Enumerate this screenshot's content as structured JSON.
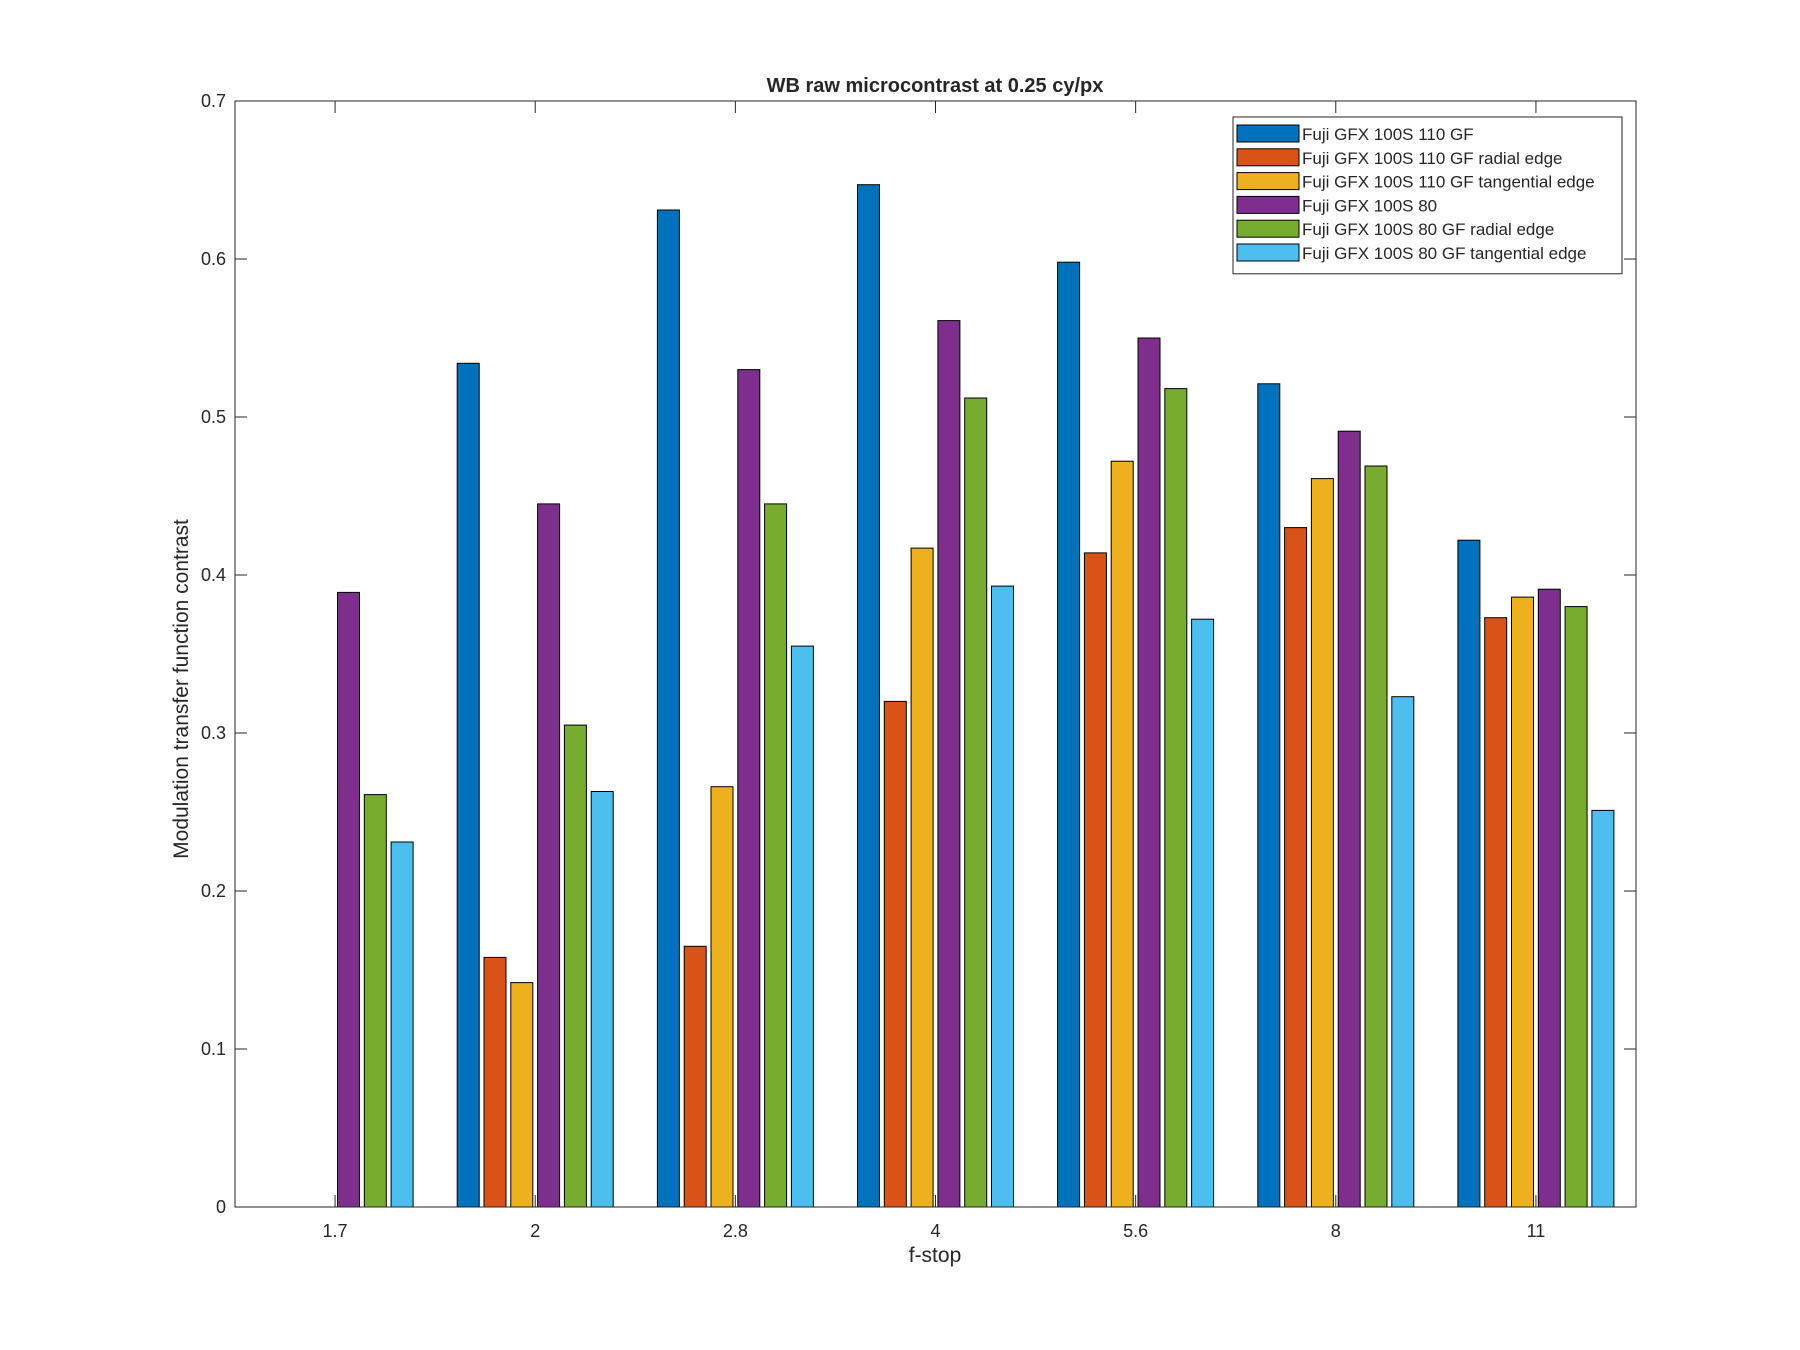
{
  "chart_data": {
    "type": "bar",
    "title": "WB raw  microcontrast at 0.25 cy/px",
    "xlabel": "f-stop",
    "ylabel": "Modulation transfer function contrast",
    "categories": [
      "1.7",
      "2",
      "2.8",
      "4",
      "5.6",
      "8",
      "11"
    ],
    "ylim": [
      0,
      0.7
    ],
    "yticks": [
      "0",
      "0.1",
      "0.2",
      "0.3",
      "0.4",
      "0.5",
      "0.6",
      "0.7"
    ],
    "grid": false,
    "legend_position": "top-right",
    "series": [
      {
        "name": "Fuji GFX 100S 110 GF",
        "color": "#0072BD",
        "values": [
          0,
          0.534,
          0.631,
          0.647,
          0.598,
          0.521,
          0.422
        ]
      },
      {
        "name": "Fuji GFX 100S 110 GF radial edge",
        "color": "#D95319",
        "values": [
          0,
          0.158,
          0.165,
          0.32,
          0.414,
          0.43,
          0.373
        ]
      },
      {
        "name": "Fuji GFX 100S 110 GF tangential edge",
        "color": "#EDB120",
        "values": [
          0,
          0.142,
          0.266,
          0.417,
          0.472,
          0.461,
          0.386
        ]
      },
      {
        "name": "Fuji GFX 100S 80",
        "color": "#7E2F8E",
        "values": [
          0.389,
          0.445,
          0.53,
          0.561,
          0.55,
          0.491,
          0.391
        ]
      },
      {
        "name": "Fuji GFX 100S 80 GF radial edge",
        "color": "#77AC30",
        "values": [
          0.261,
          0.305,
          0.445,
          0.512,
          0.518,
          0.469,
          0.38
        ]
      },
      {
        "name": "Fuji GFX 100S 80 GF tangential edge",
        "color": "#4DBEEE",
        "values": [
          0.231,
          0.263,
          0.355,
          0.393,
          0.372,
          0.323,
          0.251
        ]
      }
    ]
  }
}
